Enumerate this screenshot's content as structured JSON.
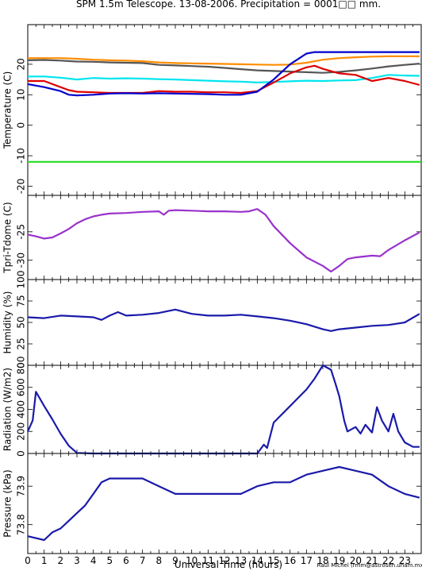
{
  "title": "SPM 1.5m Telescope. 13-08-2006. Precipitation = 0001□□ mm.",
  "xlabel": "Universal Time (hours)",
  "credit": "Raul Michel (rmm@astrosen.unam.mx)",
  "x_ticks": [
    "0",
    "1",
    "2",
    "3",
    "4",
    "5",
    "6",
    "7",
    "8",
    "9",
    "10",
    "11",
    "12",
    "13",
    "14",
    "15",
    "16",
    "17",
    "18",
    "19",
    "20",
    "21",
    "22",
    "23"
  ],
  "panels": [
    {
      "ylabel": "Temperature (C)",
      "y_ticks": [
        "20",
        "10",
        "0",
        "-10",
        "-20"
      ]
    },
    {
      "ylabel": "Tpri-Tdome (C)",
      "y_ticks": [
        "-25",
        "-30"
      ]
    },
    {
      "ylabel": "Humidity (%)",
      "y_ticks": [
        "100",
        "75",
        "50",
        "25",
        "0"
      ]
    },
    {
      "ylabel": "Radiation (W/m2)",
      "y_ticks": [
        "800",
        "600",
        "400",
        "200",
        "0"
      ]
    },
    {
      "ylabel": "Pressure (kPa)",
      "y_ticks": [
        "73.9",
        "73.8"
      ]
    }
  ],
  "chart_data": [
    {
      "type": "line",
      "ylabel": "Temperature (C)",
      "xlim": [
        0,
        24
      ],
      "ylim": [
        -23,
        33
      ],
      "series": [
        {
          "color": "#ff8c00",
          "x": [
            0,
            1,
            2,
            3,
            4,
            5,
            6,
            7,
            8,
            9,
            10,
            11,
            12,
            13,
            14,
            15,
            16,
            17,
            18,
            19,
            20,
            21,
            22,
            23,
            23.9
          ],
          "y": [
            22,
            22,
            22,
            21.8,
            21.5,
            21.3,
            21.2,
            21,
            20.6,
            20.4,
            20.3,
            20.2,
            20.1,
            20,
            19.9,
            19.8,
            19.9,
            20.5,
            21.5,
            22,
            22.3,
            22.5,
            22.6,
            22.6,
            22.6
          ]
        },
        {
          "color": "#555555",
          "x": [
            0,
            1,
            2,
            3,
            4,
            5,
            6,
            7,
            8,
            9,
            10,
            11,
            12,
            13,
            14,
            15,
            16,
            17,
            18,
            19,
            20,
            21,
            22,
            23,
            23.9
          ],
          "y": [
            21.3,
            21.4,
            21.2,
            20.9,
            20.8,
            20.6,
            20.5,
            20.4,
            19.8,
            19.6,
            19.4,
            19.2,
            18.8,
            18.4,
            18,
            17.8,
            17.6,
            17.4,
            17.2,
            17.5,
            18,
            18.6,
            19.3,
            19.8,
            20.2
          ]
        },
        {
          "color": "#00e5ee",
          "x": [
            0,
            1,
            2,
            3,
            4,
            5,
            6,
            7,
            8,
            9,
            10,
            11,
            12,
            13,
            14,
            15,
            16,
            17,
            18,
            19,
            20,
            21,
            22,
            23,
            23.9
          ],
          "y": [
            16,
            16,
            15.6,
            15,
            15.5,
            15.3,
            15.4,
            15.3,
            15.1,
            15,
            14.8,
            14.6,
            14.4,
            14.3,
            14,
            14.2,
            14.4,
            14.6,
            14.5,
            14.7,
            14.8,
            15.5,
            16.5,
            16.3,
            16.2
          ]
        },
        {
          "color": "#dd0000",
          "x": [
            0,
            1,
            2,
            2.5,
            3,
            4,
            5,
            6,
            7,
            8,
            9,
            10,
            11,
            12,
            13,
            14,
            15,
            16,
            17,
            17.5,
            18,
            19,
            20,
            21,
            22,
            23,
            23.9
          ],
          "y": [
            14.5,
            14.5,
            12.5,
            11.5,
            11,
            10.8,
            10.6,
            10.6,
            10.6,
            11.2,
            11,
            11,
            10.8,
            10.8,
            10.6,
            11.2,
            14,
            17,
            19,
            19.5,
            18.5,
            17,
            16.5,
            14.5,
            15.5,
            14.5,
            13.2
          ]
        },
        {
          "color": "#0000cc",
          "x": [
            0,
            1,
            2,
            2.5,
            3,
            4,
            5,
            6,
            7,
            8,
            9,
            10,
            11,
            12,
            13,
            14,
            15,
            16,
            17,
            17.5,
            18,
            19,
            20,
            21,
            22,
            23,
            23.9
          ],
          "y": [
            13.5,
            12.5,
            11.2,
            10,
            9.8,
            10,
            10.4,
            10.5,
            10.4,
            10.5,
            10.4,
            10.3,
            10.2,
            10,
            10,
            11,
            15,
            20,
            23.5,
            24,
            24,
            24,
            24,
            24,
            24,
            24,
            24
          ]
        },
        {
          "color": "#22dd22",
          "x": [
            0,
            24
          ],
          "y": [
            -12,
            -12
          ]
        }
      ]
    },
    {
      "type": "line",
      "ylabel": "Tpri-Tdome (C)",
      "xlim": [
        0,
        24
      ],
      "ylim": [
        -33.4,
        -18.6
      ],
      "series": [
        {
          "color": "#9932cc",
          "x": [
            0,
            0.5,
            1,
            1.5,
            2,
            2.5,
            3,
            3.5,
            4,
            4.5,
            5,
            6,
            7,
            8,
            8.3,
            8.6,
            9,
            10,
            11,
            12,
            13,
            13.5,
            14,
            14.5,
            15,
            16,
            17,
            18,
            18.5,
            19,
            19.5,
            20,
            21,
            21.5,
            22,
            23,
            23.9
          ],
          "y": [
            -25.5,
            -25.8,
            -26.2,
            -26,
            -25.3,
            -24.5,
            -23.5,
            -22.8,
            -22.3,
            -22,
            -21.8,
            -21.7,
            -21.5,
            -21.4,
            -22,
            -21.3,
            -21.2,
            -21.3,
            -21.4,
            -21.4,
            -21.5,
            -21.4,
            -21,
            -22,
            -24,
            -27,
            -29.5,
            -31,
            -32,
            -31,
            -29.8,
            -29.5,
            -29.2,
            -29.3,
            -28.2,
            -26.5,
            -25.1
          ]
        }
      ]
    },
    {
      "type": "line",
      "ylabel": "Humidity (%)",
      "xlim": [
        0,
        24
      ],
      "ylim": [
        0,
        100
      ],
      "series": [
        {
          "color": "#1a1aaa",
          "x": [
            0,
            1,
            2,
            3,
            4,
            4.5,
            5,
            5.5,
            6,
            7,
            8,
            9,
            10,
            11,
            12,
            13,
            14,
            15,
            16,
            17,
            18,
            18.5,
            19,
            20,
            21,
            22,
            23,
            23.9
          ],
          "y": [
            56,
            55,
            58,
            57,
            56,
            53,
            58,
            62,
            58,
            59,
            61,
            65,
            60,
            58,
            58,
            59,
            57,
            55,
            52,
            48,
            42,
            40,
            42,
            44,
            46,
            47,
            50,
            60
          ]
        }
      ]
    },
    {
      "type": "line",
      "ylabel": "Radiation (W/m2)",
      "xlim": [
        0,
        24
      ],
      "ylim": [
        0,
        800
      ],
      "series": [
        {
          "color": "#1a1aaa",
          "x": [
            0,
            0.3,
            0.5,
            1,
            1.5,
            2,
            2.5,
            3,
            4,
            6,
            8,
            10,
            12,
            13,
            14,
            14.2,
            14.4,
            14.6,
            15,
            16,
            17,
            17.5,
            18,
            18.5,
            18.8,
            19,
            19.3,
            19.5,
            20,
            20.3,
            20.6,
            21,
            21.3,
            21.6,
            22,
            22.3,
            22.6,
            23,
            23.5,
            23.9
          ],
          "y": [
            200,
            300,
            560,
            430,
            310,
            180,
            70,
            5,
            0,
            0,
            0,
            0,
            0,
            0,
            0,
            40,
            80,
            50,
            280,
            430,
            580,
            680,
            800,
            760,
            620,
            520,
            300,
            200,
            240,
            180,
            260,
            190,
            420,
            300,
            200,
            360,
            200,
            100,
            60,
            60
          ]
        }
      ]
    },
    {
      "type": "line",
      "ylabel": "Pressure (kPa)",
      "xlim": [
        0,
        24
      ],
      "ylim": [
        73.725,
        73.985
      ],
      "series": [
        {
          "color": "#1a1aaa",
          "x": [
            0,
            1,
            1.5,
            2,
            2.5,
            3,
            3.5,
            4,
            4.5,
            5,
            6,
            7,
            8,
            9,
            10,
            11,
            12,
            13,
            14,
            15,
            16,
            17,
            18,
            19,
            20,
            21,
            22,
            23,
            23.9
          ],
          "y": [
            73.77,
            73.76,
            73.78,
            73.79,
            73.81,
            73.83,
            73.85,
            73.88,
            73.91,
            73.92,
            73.92,
            73.92,
            73.9,
            73.88,
            73.88,
            73.88,
            73.88,
            73.88,
            73.9,
            73.91,
            73.91,
            73.93,
            73.94,
            73.95,
            73.94,
            73.93,
            73.9,
            73.88,
            73.87
          ]
        }
      ]
    }
  ]
}
